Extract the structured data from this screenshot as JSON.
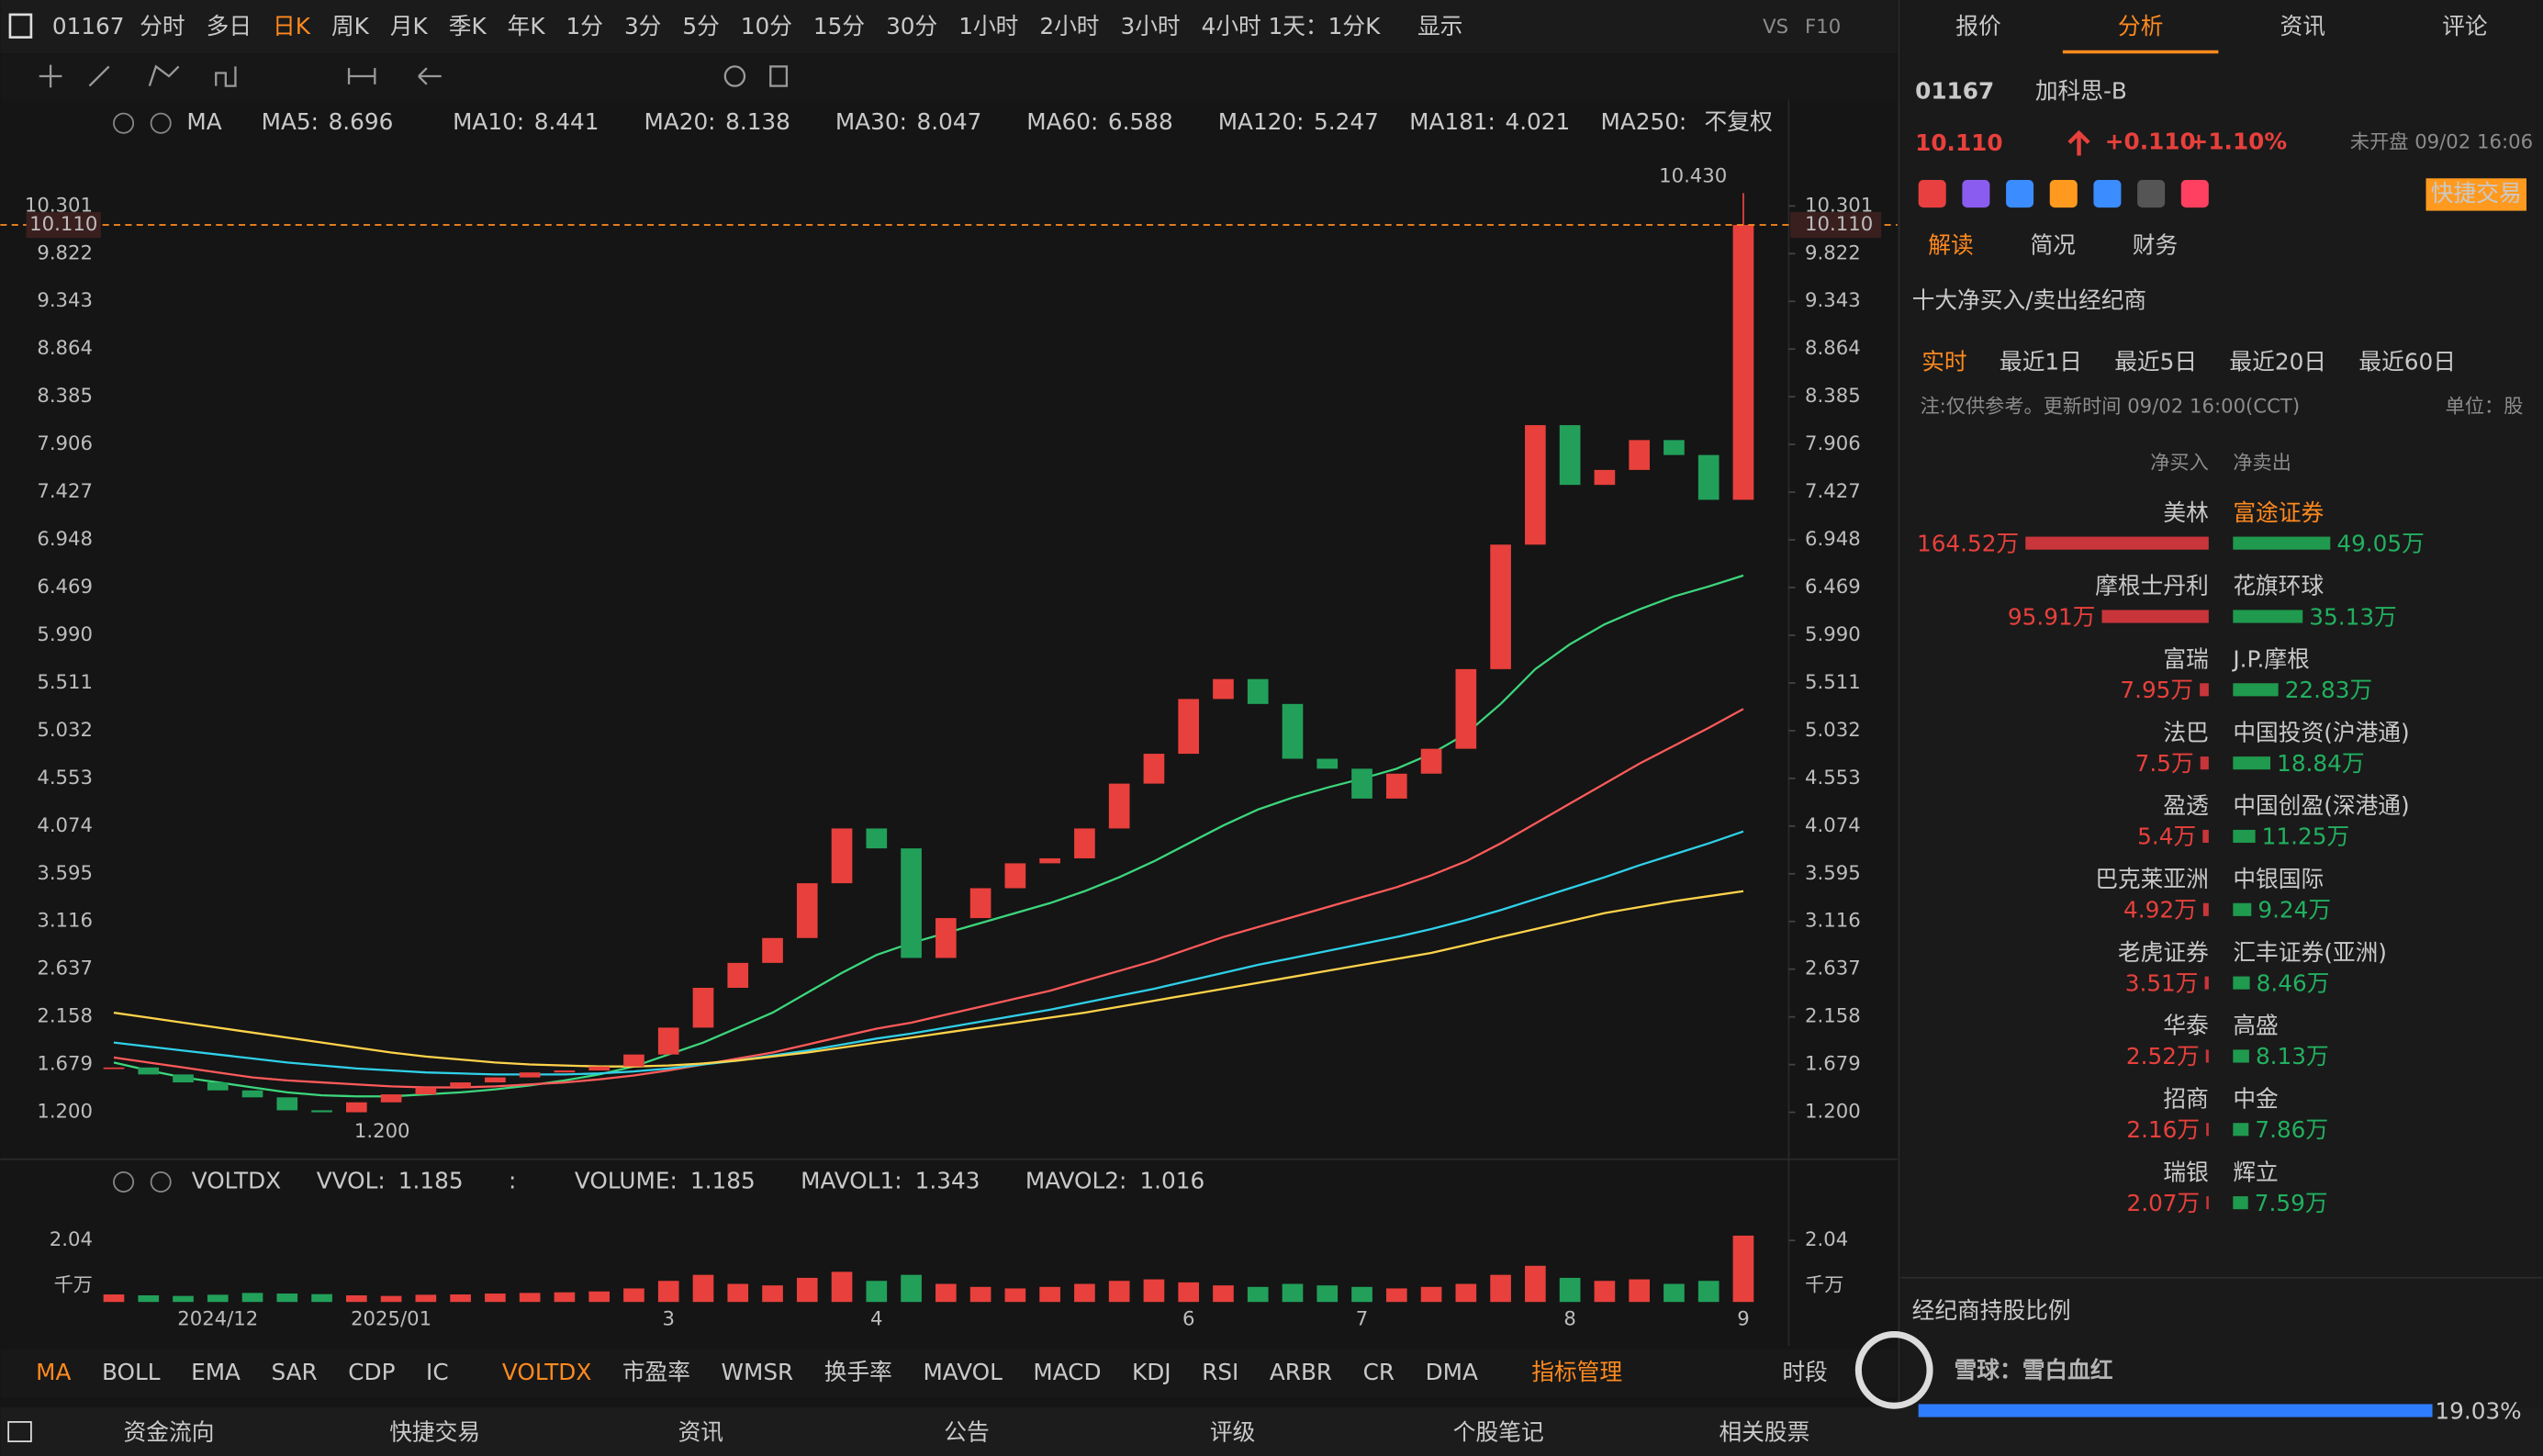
{
  "toolbar": {
    "code": "01167",
    "periods": [
      "分时",
      "多日",
      "日K",
      "周K",
      "月K",
      "季K",
      "年K",
      "1分",
      "3分",
      "5分",
      "10分",
      "15分",
      "30分",
      "1小时",
      "2小时",
      "3小时",
      "4小时"
    ],
    "active": 2,
    "day_mode": "1天：1分K",
    "display": "显示",
    "vs": "VS",
    "f10": "F10"
  },
  "top_tabs": {
    "items": [
      "报价",
      "分析",
      "资讯",
      "评论"
    ],
    "active": 1
  },
  "chart_data": {
    "type": "candlestick",
    "indicator": "MA",
    "adjust": "不复权",
    "series": [
      {
        "name": "MA5:",
        "value": 8.696,
        "color": "#ff9f1a"
      },
      {
        "name": "MA10:",
        "value": 8.441,
        "color": "#3ab0ff"
      },
      {
        "name": "MA20:",
        "value": 8.138,
        "color": "#ff5ad2"
      },
      {
        "name": "MA30:",
        "value": 8.047,
        "color": "#3d8bff"
      },
      {
        "name": "MA60:",
        "value": 6.588,
        "color": "#3cd67c",
        "values": [
          1.7,
          1.62,
          1.55,
          1.5,
          1.45,
          1.4,
          1.37,
          1.36,
          1.36,
          1.38,
          1.4,
          1.43,
          1.47,
          1.52,
          1.58,
          1.66,
          1.78,
          1.9,
          2.05,
          2.2,
          2.4,
          2.6,
          2.78,
          2.9,
          3.0,
          3.1,
          3.2,
          3.3,
          3.42,
          3.56,
          3.72,
          3.9,
          4.08,
          4.24,
          4.36,
          4.46,
          4.55,
          4.65,
          4.8,
          5.0,
          5.3,
          5.65,
          5.9,
          6.1,
          6.25,
          6.38,
          6.48,
          6.59
        ]
      },
      {
        "name": "MA120:",
        "value": 5.247,
        "color": "#ff5a5a",
        "values": [
          1.75,
          1.7,
          1.65,
          1.6,
          1.55,
          1.52,
          1.5,
          1.48,
          1.46,
          1.45,
          1.45,
          1.46,
          1.48,
          1.5,
          1.53,
          1.57,
          1.62,
          1.68,
          1.74,
          1.8,
          1.88,
          1.96,
          2.04,
          2.1,
          2.18,
          2.26,
          2.34,
          2.42,
          2.52,
          2.62,
          2.72,
          2.84,
          2.96,
          3.06,
          3.16,
          3.26,
          3.36,
          3.46,
          3.58,
          3.72,
          3.9,
          4.1,
          4.3,
          4.5,
          4.7,
          4.88,
          5.06,
          5.25
        ]
      },
      {
        "name": "MA181:",
        "value": 4.021,
        "color": "#2fd0e8",
        "values": [
          1.9,
          1.86,
          1.82,
          1.78,
          1.74,
          1.7,
          1.67,
          1.64,
          1.62,
          1.6,
          1.59,
          1.58,
          1.58,
          1.58,
          1.59,
          1.61,
          1.64,
          1.68,
          1.72,
          1.77,
          1.82,
          1.88,
          1.94,
          1.99,
          2.05,
          2.11,
          2.17,
          2.23,
          2.3,
          2.37,
          2.44,
          2.52,
          2.6,
          2.68,
          2.75,
          2.82,
          2.89,
          2.96,
          3.04,
          3.13,
          3.23,
          3.34,
          3.45,
          3.56,
          3.68,
          3.79,
          3.9,
          4.02
        ]
      },
      {
        "name": "MA250:",
        "color": "#ffd34a",
        "values": [
          2.2,
          2.15,
          2.1,
          2.05,
          2.0,
          1.95,
          1.9,
          1.85,
          1.8,
          1.76,
          1.73,
          1.7,
          1.68,
          1.67,
          1.66,
          1.66,
          1.67,
          1.69,
          1.72,
          1.76,
          1.8,
          1.85,
          1.9,
          1.95,
          2.0,
          2.05,
          2.1,
          2.15,
          2.2,
          2.26,
          2.32,
          2.38,
          2.44,
          2.5,
          2.56,
          2.62,
          2.68,
          2.74,
          2.8,
          2.88,
          2.96,
          3.04,
          3.12,
          3.2,
          3.26,
          3.32,
          3.37,
          3.42
        ]
      }
    ],
    "categories": [
      null,
      null,
      null,
      "2024/12",
      null,
      null,
      null,
      null,
      "2025/01",
      null,
      null,
      null,
      null,
      null,
      null,
      null,
      "3",
      null,
      null,
      null,
      null,
      null,
      "4",
      null,
      null,
      null,
      null,
      null,
      null,
      null,
      null,
      "6",
      null,
      null,
      null,
      null,
      "7",
      null,
      null,
      null,
      null,
      null,
      "8",
      null,
      null,
      null,
      null,
      "9"
    ],
    "closes": [
      1.65,
      1.58,
      1.5,
      1.42,
      1.35,
      1.22,
      1.2,
      1.3,
      1.38,
      1.45,
      1.5,
      1.55,
      1.6,
      1.62,
      1.66,
      1.78,
      2.05,
      2.45,
      2.7,
      2.95,
      3.5,
      4.05,
      3.85,
      2.75,
      3.15,
      3.45,
      3.7,
      3.75,
      4.05,
      4.5,
      4.8,
      5.35,
      5.55,
      5.3,
      4.75,
      4.65,
      4.35,
      4.6,
      4.85,
      5.65,
      6.9,
      8.1,
      7.5,
      7.65,
      7.95,
      7.8,
      7.35,
      10.11
    ],
    "ylim": [
      0.728,
      10.871
    ],
    "yticks": [
      {
        "value": 1.2,
        "label": "1.200"
      },
      1.679,
      2.158,
      2.637,
      3.116,
      3.595,
      4.074,
      4.553,
      5.032,
      5.511,
      {
        "value": 5.99,
        "label": "5.990"
      },
      6.469,
      6.948,
      7.427,
      7.906,
      8.385,
      8.864,
      9.343,
      9.822,
      10.301
    ],
    "last": {
      "value": 10.11,
      "label": "10.110"
    },
    "high": {
      "value": 10.43,
      "label": "10.430"
    },
    "low": {
      "value": 1.2,
      "label": "1.200"
    },
    "up_color": "#e8403c",
    "down_color": "#22a05a",
    "volume": {
      "title": "VOLTDX",
      "items": [
        {
          "name": "VVOL:",
          "value": 1.185,
          "color": "#5aa0ff"
        },
        {
          "name": ":",
          "color": "#5aa0ff"
        },
        {
          "name": "VOLUME:",
          "value": 1.185,
          "color": "#5aa0ff"
        },
        {
          "name": "MAVOL1:",
          "value": 1.343,
          "color": "#ff7ad0"
        },
        {
          "name": "MAVOL2:",
          "value": 1.016,
          "color": "#5aa0ff"
        }
      ],
      "values": [
        0.25,
        0.22,
        0.2,
        0.24,
        0.3,
        0.28,
        0.26,
        0.22,
        0.2,
        0.24,
        0.25,
        0.28,
        0.3,
        0.32,
        0.35,
        0.45,
        0.7,
        0.9,
        0.6,
        0.55,
        0.8,
        1.0,
        0.7,
        0.9,
        0.6,
        0.5,
        0.45,
        0.5,
        0.6,
        0.7,
        0.75,
        0.65,
        0.55,
        0.5,
        0.6,
        0.55,
        0.5,
        0.45,
        0.5,
        0.6,
        0.9,
        1.2,
        0.8,
        0.7,
        0.75,
        0.6,
        0.7,
        2.2
      ],
      "ylim": [
        0,
        2.85
      ],
      "yticks": [
        2.04
      ],
      "unit": "千万"
    }
  },
  "indicator_tabs": {
    "items": [
      "MA",
      "BOLL",
      "EMA",
      "SAR",
      "CDP",
      "IC",
      "VOLTDX",
      "市盈率",
      "WMSR",
      "换手率",
      "MAVOL",
      "MACD",
      "KDJ",
      "RSI",
      "ARBR",
      "CR",
      "DMA",
      "指标管理"
    ],
    "active": [
      0,
      6,
      17
    ],
    "side": "时段"
  },
  "bottom_bar": [
    "资金流向",
    "快捷交易",
    "资讯",
    "公告",
    "评级",
    "个股笔记",
    "相关股票"
  ],
  "quote": {
    "code": "01167",
    "name": "加科思-B",
    "price": "10.110",
    "change": "+0.110",
    "pct": "+1.10%",
    "status": "未开盘 09/02 16:06",
    "trade": "快捷交易",
    "tabs": [
      "解读",
      "简况",
      "财务"
    ]
  },
  "brokers": {
    "title": "十大净买入/卖出经纪商",
    "periods": [
      "实时",
      "最近1日",
      "最近5日",
      "最近20日",
      "最近60日"
    ],
    "note": "注:仅供参考。更新时间 09/02 16:00(CCT)",
    "unit": "单位：股",
    "buy_header": "净买入",
    "sell_header": "净卖出",
    "buy": [
      {
        "name": "美林",
        "value": 164.52,
        "label": "164.52万"
      },
      {
        "name": "摩根士丹利",
        "value": 95.91,
        "label": "95.91万"
      },
      {
        "name": "富瑞",
        "value": 7.95,
        "label": "7.95万"
      },
      {
        "name": "法巴",
        "value": 7.5,
        "label": "7.5万"
      },
      {
        "name": "盈透",
        "value": 5.4,
        "label": "5.4万"
      },
      {
        "name": "巴克莱亚洲",
        "value": 4.92,
        "label": "4.92万"
      },
      {
        "name": "老虎证券",
        "value": 3.51,
        "label": "3.51万"
      },
      {
        "name": "华泰",
        "value": 2.52,
        "label": "2.52万"
      },
      {
        "name": "招商",
        "value": 2.16,
        "label": "2.16万"
      },
      {
        "name": "瑞银",
        "value": 2.07,
        "label": "2.07万"
      }
    ],
    "sell": [
      {
        "name": "富途证券",
        "value": 49.05,
        "label": "49.05万"
      },
      {
        "name": "花旗环球",
        "value": 35.13,
        "label": "35.13万"
      },
      {
        "name": "J.P.摩根",
        "value": 22.83,
        "label": "22.83万"
      },
      {
        "name": "中国投资(沪港通)",
        "value": 18.84,
        "label": "18.84万"
      },
      {
        "name": "中国创盈(深港通)",
        "value": 11.25,
        "label": "11.25万"
      },
      {
        "name": "中银国际",
        "value": 9.24,
        "label": "9.24万"
      },
      {
        "name": "汇丰证券(亚洲)",
        "value": 8.46,
        "label": "8.46万"
      },
      {
        "name": "高盛",
        "value": 8.13,
        "label": "8.13万"
      },
      {
        "name": "中金",
        "value": 7.86,
        "label": "7.86万"
      },
      {
        "name": "辉立",
        "value": 7.59,
        "label": "7.59万"
      }
    ]
  },
  "holding": {
    "title": "经纪商持股比例",
    "value": 19.03,
    "label": "19.03%"
  },
  "watermark": "雪球：雪白血红"
}
